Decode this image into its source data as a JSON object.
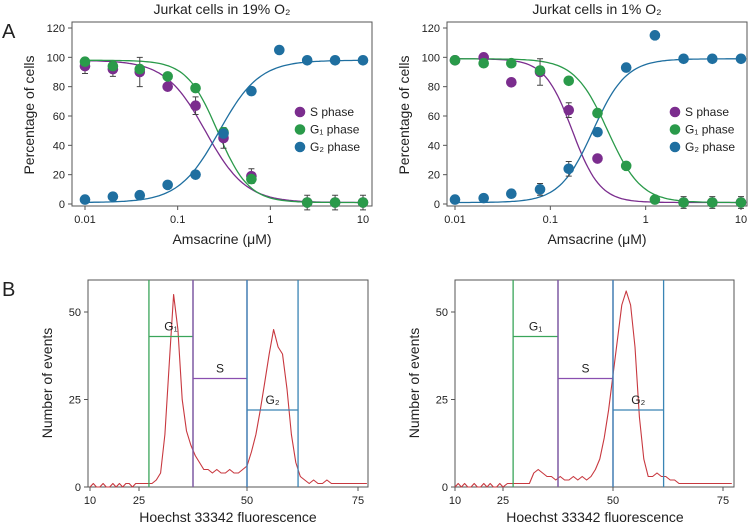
{
  "panel_labels": [
    "A",
    "B"
  ],
  "colors": {
    "s_phase": "#7b2d8e",
    "g1_phase": "#2a9a4a",
    "g2_phase": "#1f6fa0",
    "histogram": "#c8383f",
    "gate_g1": "#3aa55a",
    "gate_s": "#8a4fb0",
    "gate_g2": "#3a85b5"
  },
  "chart_data": [
    {
      "type": "scatter",
      "title": "Jurkat cells in 19% O₂",
      "xlabel": "Amsacrine (μM)",
      "ylabel": "Percentage of cells",
      "xscale": "log",
      "xlim": [
        0.01,
        10
      ],
      "ylim": [
        0,
        120
      ],
      "xticks": [
        0.01,
        0.1,
        1,
        10
      ],
      "xtick_labels": [
        "0.01",
        "0.1",
        "1",
        "10"
      ],
      "yticks": [
        0,
        20,
        40,
        60,
        80,
        100,
        120
      ],
      "legend_placement": "right",
      "grid": false,
      "x": [
        0.01,
        0.02,
        0.039,
        0.078,
        0.156,
        0.3125,
        0.625,
        1.25,
        2.5,
        5,
        10
      ],
      "series": [
        {
          "name": "S phase",
          "color_key": "s_phase",
          "values": [
            94,
            92,
            90,
            80,
            67,
            45,
            19,
            null,
            1,
            1,
            1
          ],
          "errors": [
            5,
            5,
            10,
            null,
            6,
            7,
            5,
            null,
            5,
            5,
            5
          ],
          "fit": {
            "top": 98,
            "bottom": 1,
            "ic50": 0.2,
            "hill": 2
          }
        },
        {
          "name": "G₁ phase",
          "color_key": "g1_phase",
          "values": [
            97,
            94,
            92,
            87,
            79,
            49,
            17,
            null,
            1,
            1,
            1
          ],
          "errors": [
            null,
            2,
            null,
            null,
            null,
            3,
            null,
            null,
            null,
            null,
            null
          ],
          "fit": {
            "top": 98,
            "bottom": 1,
            "ic50": 0.27,
            "hill": 2.6
          }
        },
        {
          "name": "G₂ phase",
          "color_key": "g2_phase",
          "values": [
            3,
            5,
            6,
            13,
            20,
            48,
            77,
            105,
            98,
            98,
            98
          ],
          "errors": [],
          "fit": {
            "top": 98,
            "bottom": 1,
            "ic50": 0.28,
            "hill": -2
          }
        }
      ]
    },
    {
      "type": "scatter",
      "title": "Jurkat cells in 1% O₂",
      "xlabel": "Amsacrine (μM)",
      "ylabel": "Percentage of cells",
      "xscale": "log",
      "xlim": [
        0.01,
        10
      ],
      "ylim": [
        0,
        120
      ],
      "xticks": [
        0.01,
        0.1,
        1,
        10
      ],
      "xtick_labels": [
        "0.01",
        "0.1",
        "1",
        "10"
      ],
      "yticks": [
        0,
        20,
        40,
        60,
        80,
        100,
        120
      ],
      "legend_placement": "right",
      "grid": false,
      "x": [
        0.01,
        0.02,
        0.039,
        0.078,
        0.156,
        0.3125,
        0.625,
        1.25,
        2.5,
        5,
        10
      ],
      "series": [
        {
          "name": "S phase",
          "color_key": "s_phase",
          "values": [
            98,
            100,
            83,
            90,
            64,
            31,
            null,
            null,
            1,
            1,
            1
          ],
          "errors": [
            null,
            null,
            null,
            9,
            5,
            null,
            null,
            null,
            4,
            4,
            4
          ],
          "fit": {
            "top": 99,
            "bottom": 1,
            "ic50": 0.17,
            "hill": 3
          }
        },
        {
          "name": "G₁ phase",
          "color_key": "g1_phase",
          "values": [
            98,
            96,
            96,
            91,
            84,
            62,
            26,
            3,
            1,
            1,
            1
          ],
          "errors": [],
          "fit": {
            "top": 99,
            "bottom": 1,
            "ic50": 0.4,
            "hill": 2.5
          }
        },
        {
          "name": "G₂ phase",
          "color_key": "g2_phase",
          "values": [
            3,
            4,
            7,
            10,
            24,
            49,
            93,
            115,
            99,
            99,
            99
          ],
          "errors": [
            null,
            null,
            null,
            4,
            5,
            null,
            null,
            null,
            null,
            null,
            null
          ],
          "fit": {
            "top": 99,
            "bottom": 1,
            "ic50": 0.28,
            "hill": -2.5
          }
        }
      ]
    },
    {
      "type": "area",
      "xlabel": "Hoechst 33342 fluorescence",
      "ylabel": "Number of events",
      "xticks": [
        10,
        25,
        50,
        75
      ],
      "yticks": [
        0,
        25,
        50
      ],
      "ylim": [
        0,
        59
      ],
      "x_start": 10,
      "x_step": 1,
      "values": [
        0,
        1,
        0,
        0,
        1,
        0,
        0,
        1,
        0,
        1,
        0,
        1,
        1,
        0,
        1,
        1,
        1,
        1,
        1,
        2,
        4,
        15,
        35,
        55,
        45,
        25,
        16,
        12,
        9,
        7,
        5,
        5,
        4,
        5,
        4,
        4,
        5,
        4,
        4,
        5,
        6,
        10,
        15,
        22,
        30,
        38,
        45,
        40,
        38,
        28,
        15,
        7,
        3,
        2,
        1,
        2,
        1,
        1,
        2,
        1,
        1,
        1,
        1,
        1,
        1,
        1,
        1,
        1
      ],
      "gates": [
        {
          "label": "G₁",
          "color_key": "gate_g1",
          "from": 27.3,
          "to": 37.5,
          "level": 43
        },
        {
          "label": "S",
          "color_key": "gate_s",
          "from": 37.5,
          "to": 50,
          "level": 31
        },
        {
          "label": "G₂",
          "color_key": "gate_g2",
          "from": 50,
          "to": 61.5,
          "level": 22
        }
      ]
    },
    {
      "type": "area",
      "xlabel": "Hoechst 33342 fluorescence",
      "ylabel": "Number of events",
      "xticks": [
        10,
        25,
        50,
        75
      ],
      "yticks": [
        0,
        25,
        50
      ],
      "ylim": [
        0,
        59
      ],
      "x_start": 10,
      "x_step": 1,
      "values": [
        0,
        1,
        0,
        1,
        0,
        0,
        1,
        0,
        0,
        1,
        0,
        1,
        0,
        0,
        1,
        0,
        1,
        1,
        1,
        1,
        1,
        1,
        4,
        5,
        4,
        3,
        3,
        2,
        3,
        2,
        2,
        3,
        2,
        3,
        2,
        3,
        5,
        8,
        14,
        22,
        32,
        42,
        52,
        56,
        52,
        40,
        20,
        8,
        3,
        3,
        4,
        3,
        3,
        2,
        2,
        1,
        1,
        1,
        1,
        1,
        1,
        1,
        1,
        1,
        1,
        1,
        1,
        1
      ],
      "gates": [
        {
          "label": "G₁",
          "color_key": "gate_g1",
          "from": 27.3,
          "to": 37.5,
          "level": 43
        },
        {
          "label": "S",
          "color_key": "gate_s",
          "from": 37.5,
          "to": 50,
          "level": 31
        },
        {
          "label": "G₂",
          "color_key": "gate_g2",
          "from": 50,
          "to": 61.5,
          "level": 22
        }
      ]
    }
  ]
}
